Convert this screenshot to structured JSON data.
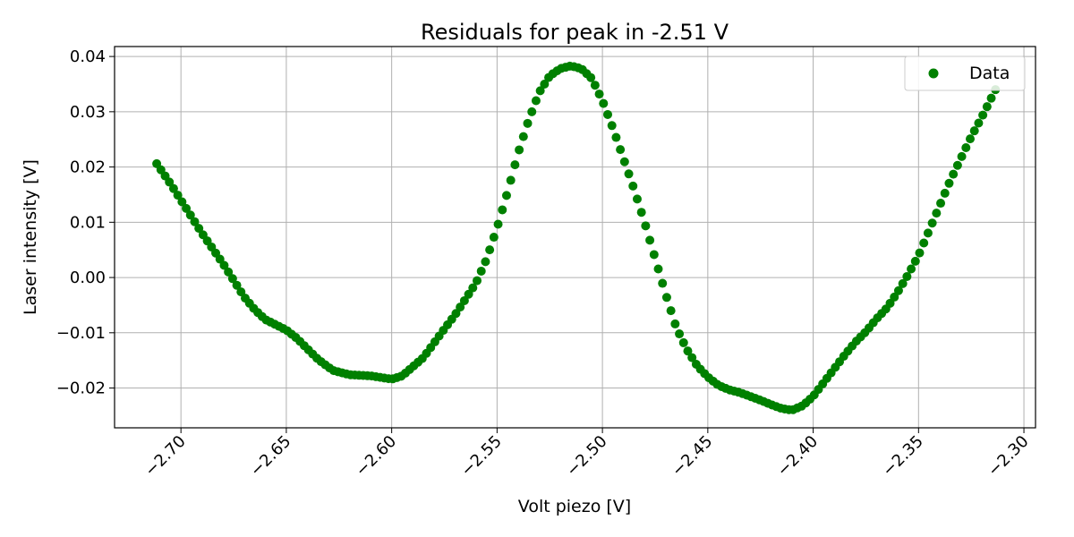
{
  "chart_data": {
    "type": "scatter",
    "title": "Residuals for peak in -2.51 V",
    "xlabel": "Volt piezo [V]",
    "ylabel": "Laser intensity [V]",
    "xlim": [
      -2.7315,
      -2.2945
    ],
    "ylim": [
      -0.0272,
      0.0418
    ],
    "xticks": [
      -2.7,
      -2.65,
      -2.6,
      -2.55,
      -2.5,
      -2.45,
      -2.4,
      -2.35,
      -2.3
    ],
    "xtick_labels": [
      "−2.70",
      "−2.65",
      "−2.60",
      "−2.55",
      "−2.50",
      "−2.45",
      "−2.40",
      "−2.35",
      "−2.30"
    ],
    "xtick_rotation": 45,
    "yticks": [
      -0.02,
      -0.01,
      0.0,
      0.01,
      0.02,
      0.03,
      0.04
    ],
    "ytick_labels": [
      "−0.02",
      "−0.01",
      "0.00",
      "0.01",
      "0.02",
      "0.03",
      "0.04"
    ],
    "grid": true,
    "legend_position": "top-right",
    "series": [
      {
        "name": "Data",
        "color": "#008000",
        "marker": "circle",
        "x_start": -2.7115,
        "x_end": -2.3135,
        "x_step": 0.002,
        "keypoints": [
          [
            -2.7115,
            0.0206
          ],
          [
            -2.705,
            0.017
          ],
          [
            -2.7,
            0.014
          ],
          [
            -2.69,
            0.008
          ],
          [
            -2.68,
            0.0025
          ],
          [
            -2.67,
            -0.0035
          ],
          [
            -2.665,
            -0.0058
          ],
          [
            -2.66,
            -0.0076
          ],
          [
            -2.65,
            -0.0095
          ],
          [
            -2.645,
            -0.011
          ],
          [
            -2.635,
            -0.0148
          ],
          [
            -2.628,
            -0.0168
          ],
          [
            -2.62,
            -0.0176
          ],
          [
            -2.61,
            -0.0178
          ],
          [
            -2.6,
            -0.0184
          ],
          [
            -2.595,
            -0.0178
          ],
          [
            -2.585,
            -0.0145
          ],
          [
            -2.575,
            -0.0093
          ],
          [
            -2.57,
            -0.0068
          ],
          [
            -2.56,
            -0.001
          ],
          [
            -2.555,
            0.0033
          ],
          [
            -2.55,
            0.009
          ],
          [
            -2.545,
            0.0155
          ],
          [
            -2.54,
            0.0225
          ],
          [
            -2.535,
            0.0285
          ],
          [
            -2.53,
            0.0335
          ],
          [
            -2.525,
            0.0365
          ],
          [
            -2.52,
            0.0378
          ],
          [
            -2.515,
            0.0383
          ],
          [
            -2.51,
            0.0378
          ],
          [
            -2.505,
            0.036
          ],
          [
            -2.5,
            0.032
          ],
          [
            -2.495,
            0.027
          ],
          [
            -2.49,
            0.0215
          ],
          [
            -2.485,
            0.016
          ],
          [
            -2.48,
            0.01
          ],
          [
            -2.475,
            0.0035
          ],
          [
            -2.47,
            -0.003
          ],
          [
            -2.465,
            -0.009
          ],
          [
            -2.46,
            -0.013
          ],
          [
            -2.455,
            -0.016
          ],
          [
            -2.45,
            -0.018
          ],
          [
            -2.445,
            -0.0195
          ],
          [
            -2.44,
            -0.0203
          ],
          [
            -2.435,
            -0.0208
          ],
          [
            -2.43,
            -0.0215
          ],
          [
            -2.425,
            -0.0222
          ],
          [
            -2.42,
            -0.023
          ],
          [
            -2.415,
            -0.0237
          ],
          [
            -2.41,
            -0.024
          ],
          [
            -2.405,
            -0.0232
          ],
          [
            -2.4,
            -0.0215
          ],
          [
            -2.395,
            -0.019
          ],
          [
            -2.39,
            -0.0165
          ],
          [
            -2.385,
            -0.014
          ],
          [
            -2.38,
            -0.0117
          ],
          [
            -2.375,
            -0.0098
          ],
          [
            -2.37,
            -0.0075
          ],
          [
            -2.365,
            -0.0055
          ],
          [
            -2.36,
            -0.0027
          ],
          [
            -2.355,
            0.0005
          ],
          [
            -2.35,
            0.004
          ],
          [
            -2.345,
            0.0085
          ],
          [
            -2.34,
            0.013
          ],
          [
            -2.335,
            0.0175
          ],
          [
            -2.33,
            0.0215
          ],
          [
            -2.325,
            0.0255
          ],
          [
            -2.32,
            0.029
          ],
          [
            -2.3135,
            0.034
          ]
        ]
      }
    ]
  }
}
